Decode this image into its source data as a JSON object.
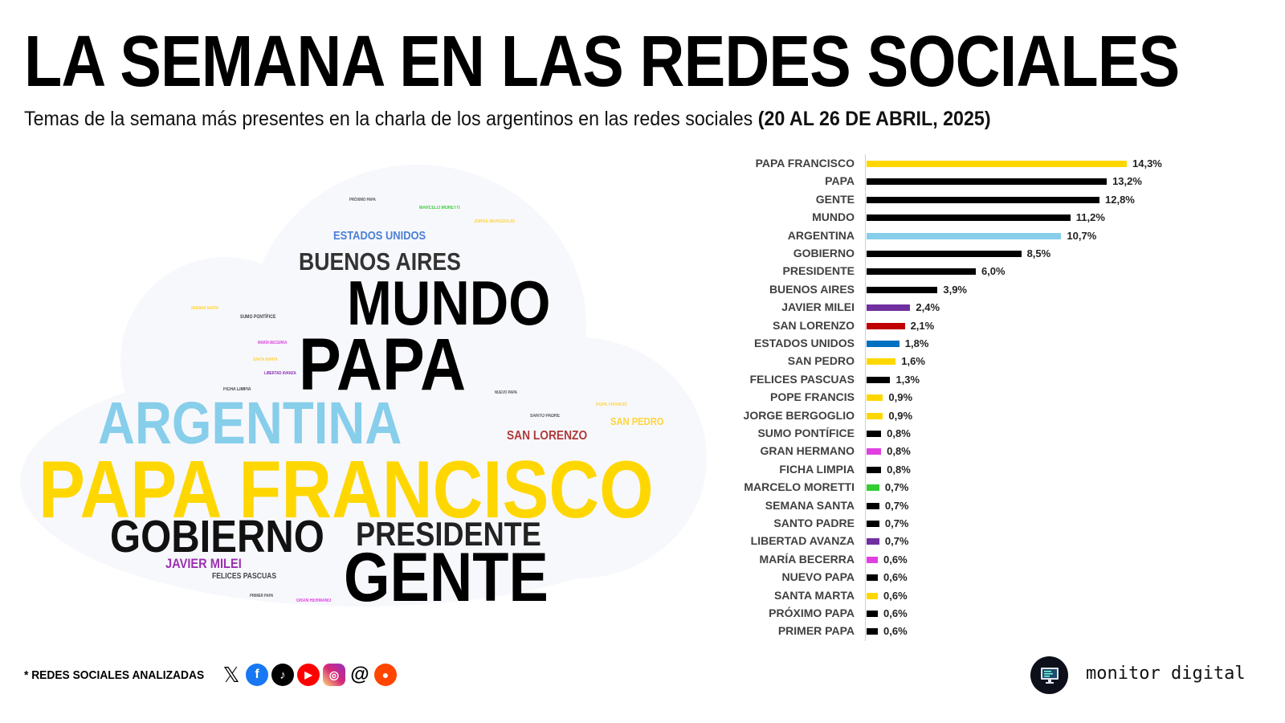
{
  "header": {
    "title": "LA SEMANA EN LAS REDES SOCIALES",
    "subtitle": "Temas de la semana más presentes en la charla de los argentinos en las redes sociales",
    "subtitle_period": "(20 AL 26 DE ABRIL, 2025)"
  },
  "word_cloud": [
    {
      "text": "PAPA FRANCISCO",
      "color": "#FFD700"
    },
    {
      "text": "ARGENTINA",
      "color": "#87CEEB"
    },
    {
      "text": "PAPA",
      "color": "#000000"
    },
    {
      "text": "MUNDO",
      "color": "#000000"
    },
    {
      "text": "GENTE",
      "color": "#000000"
    },
    {
      "text": "GOBIERNO",
      "color": "#111111"
    },
    {
      "text": "PRESIDENTE",
      "color": "#222222"
    },
    {
      "text": "BUENOS AIRES",
      "color": "#333333"
    },
    {
      "text": "ESTADOS UNIDOS",
      "color": "#4A7FD4"
    },
    {
      "text": "SAN LORENZO",
      "color": "#B03A3A"
    },
    {
      "text": "JAVIER MILEI",
      "color": "#9B30B0"
    },
    {
      "text": "SAN PEDRO",
      "color": "#FFD43B"
    },
    {
      "text": "FELICES PASCUAS",
      "color": "#444444"
    },
    {
      "text": "PRÓXIMO PAPA",
      "color": "#555555"
    },
    {
      "text": "MARCELO MORETTI",
      "color": "#44CC44"
    },
    {
      "text": "JORGE BERGOGLIO",
      "color": "#FFD43B"
    },
    {
      "text": "SEMANA SANTA",
      "color": "#FFD43B"
    },
    {
      "text": "SUMO PONTÍFICE",
      "color": "#444444"
    },
    {
      "text": "MARÍA BECERRA",
      "color": "#E040E0"
    },
    {
      "text": "SANTA MARTA",
      "color": "#FFD43B"
    },
    {
      "text": "LIBERTAD AVANZA",
      "color": "#8A30B0"
    },
    {
      "text": "FICHA LIMPIA",
      "color": "#444444"
    },
    {
      "text": "NUEVO PAPA",
      "color": "#555555"
    },
    {
      "text": "POPE FRANCIS",
      "color": "#FFD43B"
    },
    {
      "text": "SANTO PADRE",
      "color": "#555555"
    },
    {
      "text": "PRIMER PAPA",
      "color": "#555555"
    },
    {
      "text": "GRAN HERMANO",
      "color": "#E040E0"
    }
  ],
  "chart_data": {
    "type": "bar",
    "orientation": "horizontal",
    "title": "",
    "xlabel": "",
    "ylabel": "",
    "categories": [
      "PAPA FRANCISCO",
      "PAPA",
      "GENTE",
      "MUNDO",
      "ARGENTINA",
      "GOBIERNO",
      "PRESIDENTE",
      "BUENOS AIRES",
      "JAVIER MILEI",
      "SAN LORENZO",
      "ESTADOS UNIDOS",
      "SAN PEDRO",
      "FELICES PASCUAS",
      "POPE FRANCIS",
      "JORGE BERGOGLIO",
      "SUMO PONTÍFICE",
      "GRAN HERMANO",
      "FICHA LIMPIA",
      "MARCELO MORETTI",
      "SEMANA SANTA",
      "SANTO PADRE",
      "LIBERTAD AVANZA",
      "MARÍA BECERRA",
      "NUEVO PAPA",
      "SANTA MARTA",
      "PRÓXIMO PAPA",
      "PRIMER PAPA"
    ],
    "values": [
      14.3,
      13.2,
      12.8,
      11.2,
      10.7,
      8.5,
      6.0,
      3.9,
      2.4,
      2.1,
      1.8,
      1.6,
      1.3,
      0.9,
      0.9,
      0.8,
      0.8,
      0.8,
      0.7,
      0.7,
      0.7,
      0.7,
      0.6,
      0.6,
      0.6,
      0.6,
      0.6
    ],
    "labels": [
      "14,3%",
      "13,2%",
      "12,8%",
      "11,2%",
      "10,7%",
      "8,5%",
      "6,0%",
      "3,9%",
      "2,4%",
      "2,1%",
      "1,8%",
      "1,6%",
      "1,3%",
      "0,9%",
      "0,9%",
      "0,8%",
      "0,8%",
      "0,8%",
      "0,7%",
      "0,7%",
      "0,7%",
      "0,7%",
      "0,6%",
      "0,6%",
      "0,6%",
      "0,6%",
      "0,6%"
    ],
    "colors": [
      "#FFD700",
      "#000000",
      "#000000",
      "#000000",
      "#87CEEB",
      "#000000",
      "#000000",
      "#000000",
      "#7030A0",
      "#C00000",
      "#0070C0",
      "#FFD700",
      "#000000",
      "#FFD700",
      "#FFD700",
      "#000000",
      "#E040E0",
      "#000000",
      "#33CC33",
      "#000000",
      "#000000",
      "#7030A0",
      "#E040E0",
      "#000000",
      "#FFD700",
      "#000000",
      "#000000"
    ],
    "xlim": [
      0,
      14.3
    ],
    "grid": false,
    "legend": "none"
  },
  "footer": {
    "networks_label": "* REDES SOCIALES ANALIZADAS",
    "networks": [
      "X",
      "Facebook",
      "TikTok",
      "YouTube",
      "Instagram",
      "Threads",
      "Reddit"
    ],
    "brand": "monitor digital"
  }
}
